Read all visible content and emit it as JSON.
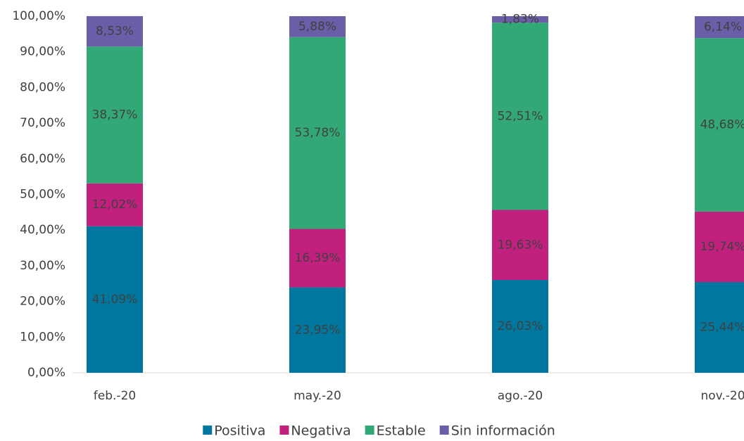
{
  "chart_data": {
    "type": "stacked_bar",
    "categories": [
      "feb.-20",
      "may.-20",
      "ago.-20",
      "nov.-20"
    ],
    "series": [
      {
        "name": "Positiva",
        "color": "#00779e",
        "values": [
          41.09,
          23.95,
          26.03,
          25.44
        ],
        "value_labels": [
          "41,09%",
          "23,95%",
          "26,03%",
          "25,44%"
        ]
      },
      {
        "name": "Negativa",
        "color": "#c2207f",
        "values": [
          12.02,
          16.39,
          19.63,
          19.74
        ],
        "value_labels": [
          "12,02%",
          "16,39%",
          "19,63%",
          "19,74%"
        ]
      },
      {
        "name": "Estable",
        "color": "#33a877",
        "values": [
          38.37,
          53.78,
          52.51,
          48.68
        ],
        "value_labels": [
          "38,37%",
          "53,78%",
          "52,51%",
          "48,68%"
        ]
      },
      {
        "name": "Sin información",
        "color": "#6b5ea8",
        "values": [
          8.53,
          5.88,
          1.83,
          6.14
        ],
        "value_labels": [
          "8,53%",
          "5,88%",
          "1,83%",
          "6,14%"
        ]
      }
    ],
    "ylim": [
      0,
      100
    ],
    "yticks": [
      {
        "value": 0,
        "label": "0,00%"
      },
      {
        "value": 10,
        "label": "10,00%"
      },
      {
        "value": 20,
        "label": "20,00%"
      },
      {
        "value": 30,
        "label": "30,00%"
      },
      {
        "value": 40,
        "label": "40,00%"
      },
      {
        "value": 50,
        "label": "50,00%"
      },
      {
        "value": 60,
        "label": "60,00%"
      },
      {
        "value": 70,
        "label": "70,00%"
      },
      {
        "value": 80,
        "label": "80,00%"
      },
      {
        "value": 90,
        "label": "90,00%"
      },
      {
        "value": 100,
        "label": "100,00%"
      }
    ],
    "grid": false,
    "legend": "bottom"
  }
}
